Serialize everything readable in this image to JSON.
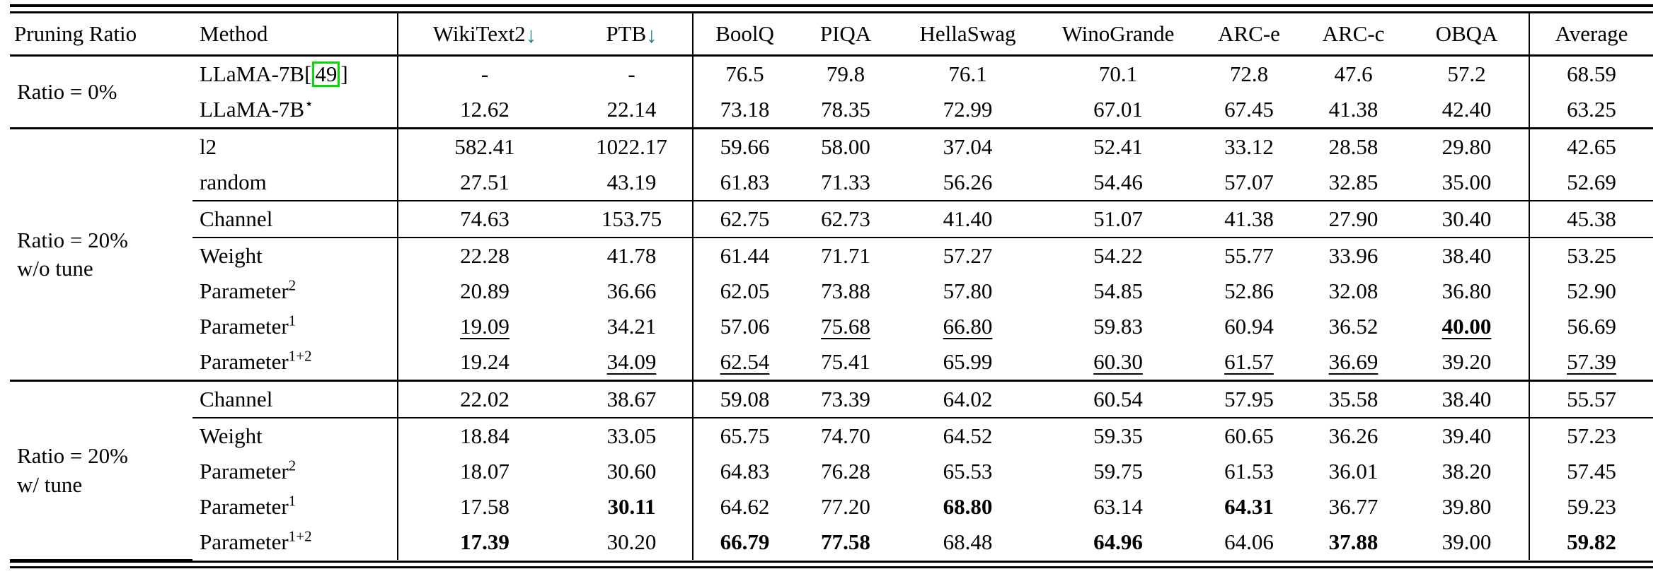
{
  "colors": {
    "arrow": "#1b7f88",
    "cite_box": "#00dc00",
    "rule": "#000000"
  },
  "columns": [
    {
      "key": "pruning-ratio",
      "label": "Pruning Ratio",
      "align": "left"
    },
    {
      "key": "method",
      "label": "Method",
      "align": "left",
      "vline_right": true
    },
    {
      "key": "wikitext2",
      "label": "WikiText2",
      "arrow_down": "↓"
    },
    {
      "key": "ptb",
      "label": "PTB",
      "arrow_down": "↓",
      "vline_right": true
    },
    {
      "key": "boolq",
      "label": "BoolQ"
    },
    {
      "key": "piqa",
      "label": "PIQA"
    },
    {
      "key": "hellaswag",
      "label": "HellaSwag"
    },
    {
      "key": "winogrande",
      "label": "WinoGrande"
    },
    {
      "key": "arc-e",
      "label": "ARC-e"
    },
    {
      "key": "arc-c",
      "label": "ARC-c"
    },
    {
      "key": "obqa",
      "label": "OBQA",
      "vline_right": true
    },
    {
      "key": "average",
      "label": "Average"
    }
  ],
  "groups": [
    {
      "label_lines": [
        "Ratio = 0%"
      ],
      "dividers_after": [],
      "rows": [
        {
          "method": {
            "text": "LLaMA-7B",
            "cite": "49"
          },
          "values": [
            {
              "v": "-"
            },
            {
              "v": "-"
            },
            {
              "v": "76.5"
            },
            {
              "v": "79.8"
            },
            {
              "v": "76.1"
            },
            {
              "v": "70.1"
            },
            {
              "v": "72.8"
            },
            {
              "v": "47.6"
            },
            {
              "v": "57.2"
            },
            {
              "v": "68.59"
            }
          ]
        },
        {
          "method": {
            "text": "LLaMA-7B",
            "sup": "⋆"
          },
          "values": [
            {
              "v": "12.62"
            },
            {
              "v": "22.14"
            },
            {
              "v": "73.18"
            },
            {
              "v": "78.35"
            },
            {
              "v": "72.99"
            },
            {
              "v": "67.01"
            },
            {
              "v": "67.45"
            },
            {
              "v": "41.38"
            },
            {
              "v": "42.40"
            },
            {
              "v": "63.25"
            }
          ]
        }
      ]
    },
    {
      "label_lines": [
        "Ratio = 20%",
        "w/o tune"
      ],
      "dividers_after": [
        1,
        2
      ],
      "rows": [
        {
          "method": {
            "text": "l2"
          },
          "values": [
            {
              "v": "582.41"
            },
            {
              "v": "1022.17"
            },
            {
              "v": "59.66"
            },
            {
              "v": "58.00"
            },
            {
              "v": "37.04"
            },
            {
              "v": "52.41"
            },
            {
              "v": "33.12"
            },
            {
              "v": "28.58"
            },
            {
              "v": "29.80"
            },
            {
              "v": "42.65"
            }
          ]
        },
        {
          "method": {
            "text": "random"
          },
          "values": [
            {
              "v": "27.51"
            },
            {
              "v": "43.19"
            },
            {
              "v": "61.83"
            },
            {
              "v": "71.33"
            },
            {
              "v": "56.26"
            },
            {
              "v": "54.46"
            },
            {
              "v": "57.07"
            },
            {
              "v": "32.85"
            },
            {
              "v": "35.00"
            },
            {
              "v": "52.69"
            }
          ]
        },
        {
          "method": {
            "text": "Channel"
          },
          "values": [
            {
              "v": "74.63"
            },
            {
              "v": "153.75"
            },
            {
              "v": "62.75"
            },
            {
              "v": "62.73"
            },
            {
              "v": "41.40"
            },
            {
              "v": "51.07"
            },
            {
              "v": "41.38"
            },
            {
              "v": "27.90"
            },
            {
              "v": "30.40"
            },
            {
              "v": "45.38"
            }
          ]
        },
        {
          "method": {
            "text": "Weight"
          },
          "values": [
            {
              "v": "22.28"
            },
            {
              "v": "41.78"
            },
            {
              "v": "61.44"
            },
            {
              "v": "71.71"
            },
            {
              "v": "57.27"
            },
            {
              "v": "54.22"
            },
            {
              "v": "55.77"
            },
            {
              "v": "33.96"
            },
            {
              "v": "38.40"
            },
            {
              "v": "53.25"
            }
          ]
        },
        {
          "method": {
            "text": "Parameter",
            "sup": "2"
          },
          "values": [
            {
              "v": "20.89"
            },
            {
              "v": "36.66"
            },
            {
              "v": "62.05"
            },
            {
              "v": "73.88"
            },
            {
              "v": "57.80"
            },
            {
              "v": "54.85"
            },
            {
              "v": "52.86"
            },
            {
              "v": "32.08"
            },
            {
              "v": "36.80"
            },
            {
              "v": "52.90"
            }
          ]
        },
        {
          "method": {
            "text": "Parameter",
            "sup": "1"
          },
          "values": [
            {
              "v": "19.09",
              "u": true
            },
            {
              "v": "34.21"
            },
            {
              "v": "57.06"
            },
            {
              "v": "75.68",
              "u": true
            },
            {
              "v": "66.80",
              "u": true
            },
            {
              "v": "59.83"
            },
            {
              "v": "60.94"
            },
            {
              "v": "36.52"
            },
            {
              "v": "40.00",
              "b": true,
              "u": true
            },
            {
              "v": "56.69"
            }
          ]
        },
        {
          "method": {
            "text": "Parameter",
            "sup": "1+2"
          },
          "values": [
            {
              "v": "19.24"
            },
            {
              "v": "34.09",
              "u": true
            },
            {
              "v": "62.54",
              "u": true
            },
            {
              "v": "75.41"
            },
            {
              "v": "65.99"
            },
            {
              "v": "60.30",
              "u": true
            },
            {
              "v": "61.57",
              "u": true
            },
            {
              "v": "36.69",
              "u": true
            },
            {
              "v": "39.20"
            },
            {
              "v": "57.39",
              "u": true
            }
          ]
        }
      ]
    },
    {
      "label_lines": [
        "Ratio = 20%",
        "w/ tune"
      ],
      "dividers_after": [
        0
      ],
      "rows": [
        {
          "method": {
            "text": "Channel"
          },
          "values": [
            {
              "v": "22.02"
            },
            {
              "v": "38.67"
            },
            {
              "v": "59.08"
            },
            {
              "v": "73.39"
            },
            {
              "v": "64.02"
            },
            {
              "v": "60.54"
            },
            {
              "v": "57.95"
            },
            {
              "v": "35.58"
            },
            {
              "v": "38.40"
            },
            {
              "v": "55.57"
            }
          ]
        },
        {
          "method": {
            "text": "Weight"
          },
          "values": [
            {
              "v": "18.84"
            },
            {
              "v": "33.05"
            },
            {
              "v": "65.75"
            },
            {
              "v": "74.70"
            },
            {
              "v": "64.52"
            },
            {
              "v": "59.35"
            },
            {
              "v": "60.65"
            },
            {
              "v": "36.26"
            },
            {
              "v": "39.40"
            },
            {
              "v": "57.23"
            }
          ]
        },
        {
          "method": {
            "text": "Parameter",
            "sup": "2"
          },
          "values": [
            {
              "v": "18.07"
            },
            {
              "v": "30.60"
            },
            {
              "v": "64.83"
            },
            {
              "v": "76.28"
            },
            {
              "v": "65.53"
            },
            {
              "v": "59.75"
            },
            {
              "v": "61.53"
            },
            {
              "v": "36.01"
            },
            {
              "v": "38.20"
            },
            {
              "v": "57.45"
            }
          ]
        },
        {
          "method": {
            "text": "Parameter",
            "sup": "1"
          },
          "values": [
            {
              "v": "17.58"
            },
            {
              "v": "30.11",
              "b": true
            },
            {
              "v": "64.62"
            },
            {
              "v": "77.20"
            },
            {
              "v": "68.80",
              "b": true
            },
            {
              "v": "63.14"
            },
            {
              "v": "64.31",
              "b": true
            },
            {
              "v": "36.77"
            },
            {
              "v": "39.80"
            },
            {
              "v": "59.23"
            }
          ]
        },
        {
          "method": {
            "text": "Parameter",
            "sup": "1+2"
          },
          "values": [
            {
              "v": "17.39",
              "b": true
            },
            {
              "v": "30.20"
            },
            {
              "v": "66.79",
              "b": true
            },
            {
              "v": "77.58",
              "b": true
            },
            {
              "v": "68.48"
            },
            {
              "v": "64.96",
              "b": true
            },
            {
              "v": "64.06"
            },
            {
              "v": "37.88",
              "b": true
            },
            {
              "v": "39.00"
            },
            {
              "v": "59.82",
              "b": true
            }
          ]
        }
      ]
    }
  ]
}
